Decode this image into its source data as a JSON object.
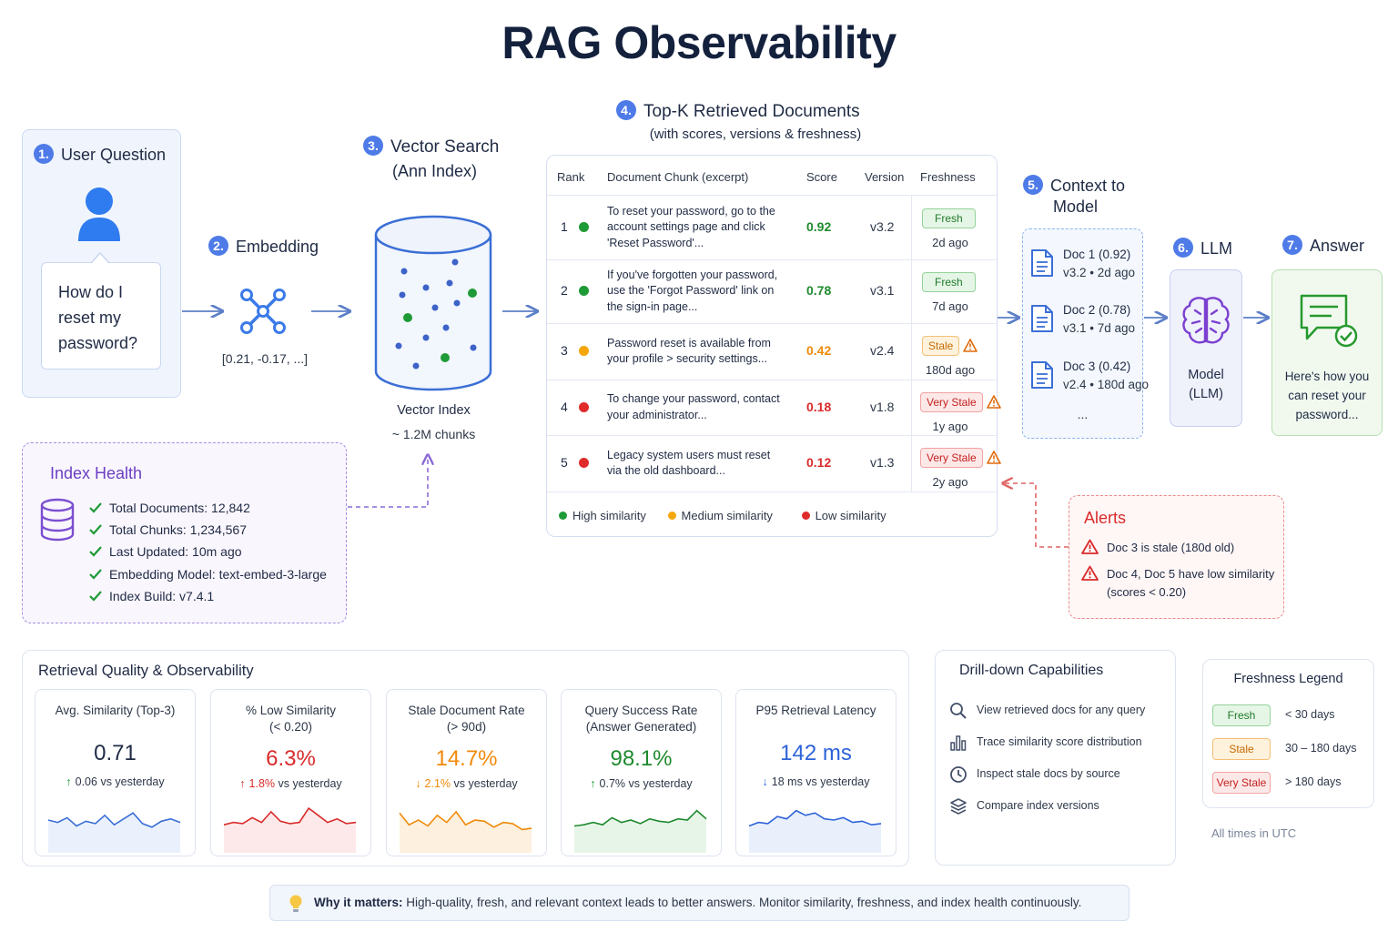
{
  "title": "RAG Observability",
  "colors": {
    "accent": "#4f7be8",
    "high": "#1e9a36",
    "medium": "#f5a60a",
    "low": "#e02b2b",
    "purple": "#7b4fd0"
  },
  "steps": {
    "user_question": {
      "num": "1.",
      "label": "User Question",
      "question": "How do I reset my password?"
    },
    "embedding": {
      "num": "2.",
      "label": "Embedding",
      "vector": "[0.21, -0.17, ...]"
    },
    "vector_search": {
      "num": "3.",
      "label": "Vector Search",
      "sub": "(Ann Index)",
      "index_label": "Vector Index",
      "index_size": "~ 1.2M chunks"
    },
    "topk": {
      "num": "4.",
      "label": "Top-K Retrieved Documents",
      "sub": "(with scores, versions & freshness)"
    },
    "context": {
      "num": "5.",
      "label_line1": "Context to",
      "label_line2": "Model"
    },
    "llm": {
      "num": "6.",
      "label": "LLM",
      "box_line1": "Model",
      "box_line2": "(LLM)"
    },
    "answer": {
      "num": "7.",
      "label": "Answer",
      "text_lines": [
        "Here's how you",
        "can reset your",
        "password..."
      ]
    }
  },
  "table": {
    "headers": {
      "rank": "Rank",
      "chunk": "Document Chunk (excerpt)",
      "score": "Score",
      "version": "Version",
      "freshness": "Freshness"
    },
    "rows": [
      {
        "rank": "1",
        "level": "high",
        "lines": [
          "To reset your password, go to the",
          "account settings page and click",
          "'Reset Password'..."
        ],
        "score": "0.92",
        "version": "v3.2",
        "badge": "Fresh",
        "badge_type": "fresh",
        "age": "2d ago",
        "warn": false
      },
      {
        "rank": "2",
        "level": "high",
        "lines": [
          "If you've forgotten your password,",
          "use the 'Forgot Password' link on",
          "the sign-in page..."
        ],
        "score": "0.78",
        "version": "v3.1",
        "badge": "Fresh",
        "badge_type": "fresh",
        "age": "7d ago",
        "warn": false
      },
      {
        "rank": "3",
        "level": "medium",
        "lines": [
          "Password reset is available from",
          "your profile > security settings..."
        ],
        "score": "0.42",
        "version": "v2.4",
        "badge": "Stale",
        "badge_type": "stale",
        "age": "180d ago",
        "warn": true
      },
      {
        "rank": "4",
        "level": "low",
        "lines": [
          "To change your password, contact",
          "your administrator..."
        ],
        "score": "0.18",
        "version": "v1.8",
        "badge": "Very Stale",
        "badge_type": "vstale",
        "age": "1y ago",
        "warn": true
      },
      {
        "rank": "5",
        "level": "low",
        "lines": [
          "Legacy system users must reset",
          "via the old dashboard..."
        ],
        "score": "0.12",
        "version": "v1.3",
        "badge": "Very Stale",
        "badge_type": "vstale",
        "age": "2y ago",
        "warn": true
      }
    ],
    "legend": {
      "high": "High similarity",
      "medium": "Medium similarity",
      "low": "Low similarity"
    }
  },
  "context_docs": [
    {
      "title": "Doc 1 (0.92)",
      "meta": "v3.2 • 2d ago"
    },
    {
      "title": "Doc 2 (0.78)",
      "meta": "v3.1 • 7d ago"
    },
    {
      "title": "Doc 3 (0.42)",
      "meta": "v2.4 • 180d ago"
    }
  ],
  "context_more": "...",
  "index_health": {
    "title": "Index Health",
    "items": [
      "Total Documents: 12,842",
      "Total Chunks: 1,234,567",
      "Last Updated: 10m ago",
      "Embedding Model: text-embed-3-large",
      "Index Build: v7.4.1"
    ]
  },
  "alerts": {
    "title": "Alerts",
    "items": [
      {
        "lines": [
          "Doc 3 is stale (180d old)"
        ]
      },
      {
        "lines": [
          "Doc 4, Doc 5 have low similarity",
          "(scores < 0.20)"
        ]
      }
    ]
  },
  "metrics": {
    "title": "Retrieval Quality & Observability",
    "cards": [
      {
        "label_lines": [
          "Avg. Similarity (Top-3)"
        ],
        "value": "0.71",
        "color": "#1f2a44",
        "arrow": "↑",
        "arrow_color": "#1e9a36",
        "delta_value": "0.06",
        "delta_rest": " vs yesterday",
        "delta_color": "#2d3748",
        "spark_color": "#3b6fd6",
        "fill": "#eaf1fc",
        "spark": [
          10,
          12,
          8,
          15,
          11,
          13,
          6,
          14,
          9,
          4,
          13,
          16,
          11,
          9,
          12
        ]
      },
      {
        "label_lines": [
          "% Low Similarity",
          "(< 0.20)"
        ],
        "value": "6.3%",
        "color": "#d92b2b",
        "arrow": "↑",
        "arrow_color": "#d92b2b",
        "delta_value": "1.8%",
        "delta_rest": " vs yesterday",
        "delta_color": "#d92b2b",
        "spark_color": "#d92b2b",
        "fill": "#fde9e9",
        "spark": [
          14,
          12,
          13,
          8,
          12,
          3,
          11,
          13,
          12,
          0,
          6,
          12,
          9,
          13,
          12
        ]
      },
      {
        "label_lines": [
          "Stale Document Rate",
          "(> 90d)"
        ],
        "value": "14.7%",
        "color": "#f08a0a",
        "arrow": "↓",
        "arrow_color": "#f08a0a",
        "delta_value": "2.1%",
        "delta_rest": " vs yesterday",
        "delta_color": "#f08a0a",
        "spark_color": "#f08a0a",
        "fill": "#fdf0de",
        "spark": [
          4,
          14,
          10,
          15,
          6,
          12,
          3,
          14,
          10,
          11,
          16,
          12,
          13,
          18,
          17
        ]
      },
      {
        "label_lines": [
          "Query Success Rate",
          "(Answer Generated)"
        ],
        "value": "98.1%",
        "color": "#1e8a2e",
        "arrow": "↑",
        "arrow_color": "#1e9a36",
        "delta_value": "0.7%",
        "delta_rest": " vs yesterday",
        "delta_color": "#2d3748",
        "spark_color": "#1e8a2e",
        "fill": "#e7f5e8",
        "spark": [
          15,
          14,
          12,
          14,
          8,
          12,
          10,
          13,
          9,
          11,
          12,
          9,
          10,
          2,
          9
        ]
      },
      {
        "label_lines": [
          "P95 Retrieval Latency"
        ],
        "value": "142 ms",
        "color": "#2d63d8",
        "arrow": "↓",
        "arrow_color": "#2d63d8",
        "delta_value": "18",
        "delta_rest": " ms vs yesterday",
        "delta_color": "#2d3748",
        "spark_color": "#2d63d8",
        "fill": "#e9f0fc",
        "spark": [
          15,
          12,
          13,
          7,
          9,
          2,
          6,
          4,
          9,
          10,
          8,
          12,
          11,
          14,
          13
        ]
      }
    ]
  },
  "drill": {
    "title": "Drill-down Capabilities",
    "items": [
      {
        "icon": "search-icon",
        "label": "View retrieved docs for any query"
      },
      {
        "icon": "bar-chart-icon",
        "label": "Trace similarity score distribution"
      },
      {
        "icon": "clock-icon",
        "label": "Inspect stale docs by source"
      },
      {
        "icon": "layers-icon",
        "label": "Compare index versions"
      }
    ]
  },
  "freshness_legend": {
    "title": "Freshness Legend",
    "items": [
      {
        "badge": "Fresh",
        "type": "fresh",
        "range": "< 30 days"
      },
      {
        "badge": "Stale",
        "type": "stale",
        "range": "30 – 180 days"
      },
      {
        "badge": "Very Stale",
        "type": "vstale",
        "range": "> 180 days"
      }
    ],
    "note": "All times in UTC"
  },
  "why": {
    "bold": "Why it matters:",
    "text": " High-quality, fresh, and relevant context leads to better answers. Monitor similarity, freshness, and index health continuously."
  }
}
